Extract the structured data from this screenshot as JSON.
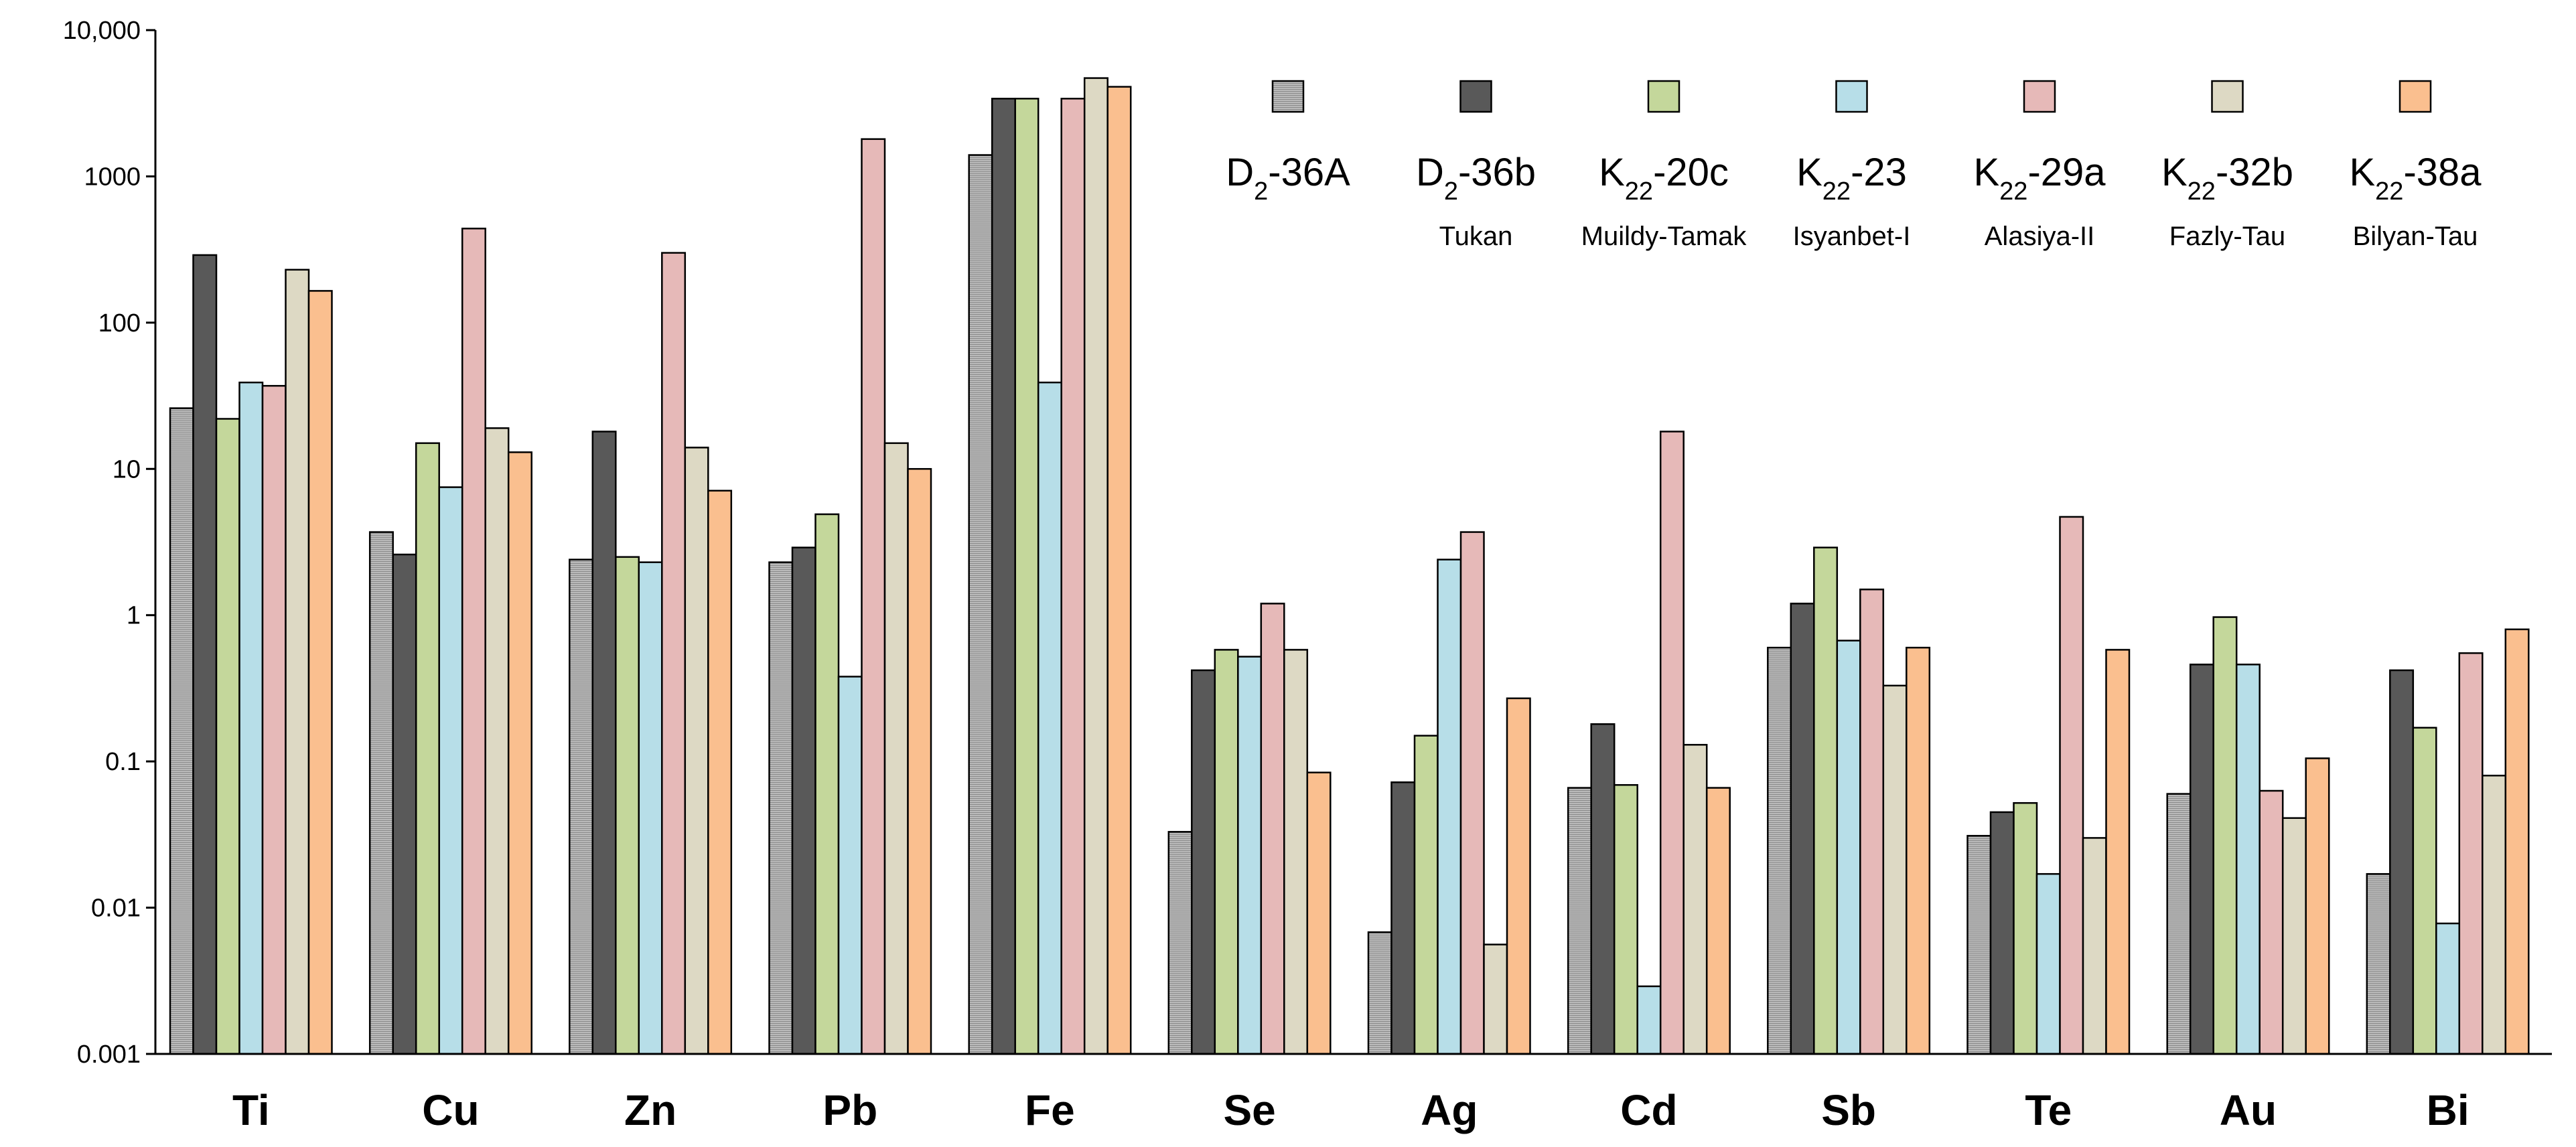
{
  "chart_data": {
    "type": "bar",
    "title": "",
    "xlabel": "",
    "ylabel": "",
    "yscale": "log",
    "ylim": [
      0.001,
      10000
    ],
    "y_ticks": [
      "0.001",
      "0.01",
      "0.1",
      "1",
      "10",
      "100",
      "1000",
      "10,000"
    ],
    "categories": [
      "Ti",
      "Cu",
      "Zn",
      "Pb",
      "Fe",
      "Se",
      "Ag",
      "Cd",
      "Sb",
      "Te",
      "Au",
      "Bi"
    ],
    "legend_position": "top-right",
    "series": [
      {
        "name": "D-36A",
        "base": "D",
        "subscript": "2",
        "suffix": "-36A",
        "location": "",
        "color": "#c0c0c0",
        "pattern": "stripes",
        "values": [
          26,
          3.7,
          2.4,
          2.3,
          1400,
          0.033,
          0.0068,
          0.066,
          0.6,
          0.031,
          0.06,
          0.017
        ]
      },
      {
        "name": "D-36b",
        "base": "D",
        "subscript": "2",
        "suffix": "-36b",
        "location": "Tukan",
        "color": "#595959",
        "pattern": "solid",
        "values": [
          290,
          2.6,
          18,
          2.9,
          3400,
          0.42,
          0.072,
          0.18,
          1.2,
          0.045,
          0.46,
          0.42
        ]
      },
      {
        "name": "K-20c",
        "base": "K",
        "subscript": "22",
        "suffix": "-20c",
        "location": "Muildy-Tamak",
        "color": "#c4d79b",
        "pattern": "solid",
        "values": [
          22,
          15,
          2.5,
          4.9,
          3400,
          0.58,
          0.15,
          0.069,
          2.9,
          0.052,
          0.97,
          0.17
        ]
      },
      {
        "name": "K-23",
        "base": "K",
        "subscript": "22",
        "suffix": "-23",
        "location": "Isyanbet-I",
        "color": "#b7dee8",
        "pattern": "solid",
        "values": [
          39,
          7.5,
          2.3,
          0.38,
          39,
          0.52,
          2.4,
          0.0029,
          0.67,
          0.017,
          0.46,
          0.0078
        ]
      },
      {
        "name": "K-29a",
        "base": "K",
        "subscript": "22",
        "suffix": "-29a",
        "location": "Alasiya-II",
        "color": "#e6b9b8",
        "pattern": "solid",
        "values": [
          37,
          440,
          300,
          1800,
          3400,
          1.2,
          3.7,
          18,
          1.5,
          4.7,
          0.063,
          0.55
        ]
      },
      {
        "name": "K-32b",
        "base": "K",
        "subscript": "22",
        "suffix": "-32b",
        "location": "Fazly-Tau",
        "color": "#ddd9c4",
        "pattern": "solid",
        "values": [
          230,
          19,
          14,
          15,
          4700,
          0.58,
          0.0056,
          0.13,
          0.33,
          0.03,
          0.041,
          0.08
        ]
      },
      {
        "name": "K-38a",
        "base": "K",
        "subscript": "22",
        "suffix": "-38a",
        "location": "Bilyan-Tau",
        "color": "#fabf8f",
        "pattern": "solid",
        "values": [
          165,
          13,
          7.1,
          10,
          4100,
          0.084,
          0.27,
          0.066,
          0.6,
          0.58,
          0.105,
          0.8
        ]
      }
    ]
  }
}
